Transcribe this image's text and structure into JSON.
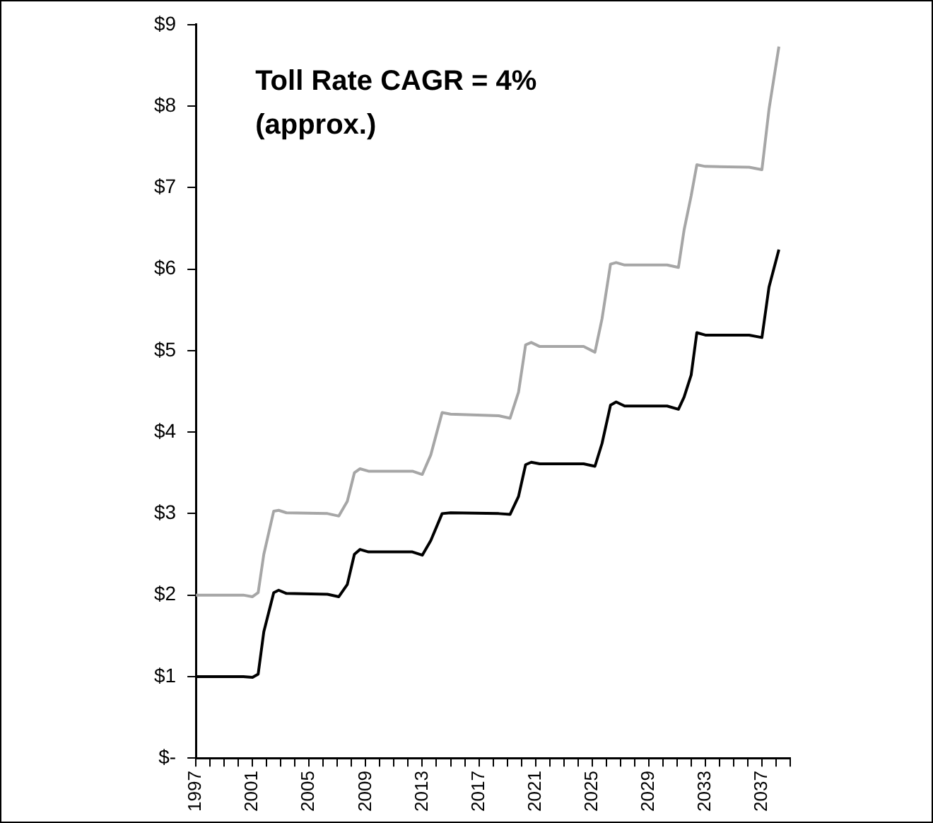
{
  "chart_data": {
    "type": "line",
    "annotations": [
      "Toll Rate CAGR = 4%\n(approx.)"
    ],
    "x": [
      1997,
      2000.35,
      2001,
      2001.4,
      2001.8,
      2002.5,
      2002.85,
      2003.4,
      2006.3,
      2007.1,
      2007.7,
      2008.2,
      2008.6,
      2009.2,
      2012.3,
      2013,
      2013.6,
      2014.4,
      2015,
      2018.4,
      2019.2,
      2019.8,
      2020.3,
      2020.7,
      2021.3,
      2024.4,
      2025.2,
      2025.7,
      2026.3,
      2026.7,
      2027.3,
      2030.3,
      2031.1,
      2031.5,
      2032,
      2032.4,
      2033,
      2036.1,
      2037,
      2037.5,
      2038.2
    ],
    "series": [
      {
        "color": "#a6a6a6",
        "values": [
          2,
          2,
          1.98,
          2.03,
          2.5,
          3.03,
          3.04,
          3.01,
          3.0,
          2.97,
          3.15,
          3.5,
          3.55,
          3.52,
          3.52,
          3.48,
          3.72,
          4.24,
          4.22,
          4.2,
          4.17,
          4.49,
          5.07,
          5.1,
          5.05,
          5.05,
          4.98,
          5.39,
          6.06,
          6.08,
          6.05,
          6.05,
          6.02,
          6.48,
          6.9,
          7.28,
          7.26,
          7.25,
          7.22,
          7.96,
          8.73
        ]
      },
      {
        "color": "#000000",
        "values": [
          1,
          1,
          0.99,
          1.03,
          1.55,
          2.03,
          2.06,
          2.02,
          2.01,
          1.98,
          2.13,
          2.5,
          2.56,
          2.53,
          2.53,
          2.49,
          2.67,
          3.0,
          3.01,
          3.0,
          2.99,
          3.21,
          3.6,
          3.63,
          3.61,
          3.61,
          3.58,
          3.86,
          4.33,
          4.37,
          4.32,
          4.32,
          4.28,
          4.43,
          4.7,
          5.22,
          5.19,
          5.19,
          5.16,
          5.78,
          6.24
        ]
      }
    ],
    "xlim": [
      1997,
      2039
    ],
    "xticks": [
      1997,
      {
        "value": 1998,
        "label": null
      },
      {
        "value": 1999,
        "label": null
      },
      {
        "value": 2000,
        "label": null
      },
      2001,
      {
        "value": 2002,
        "label": null
      },
      {
        "value": 2003,
        "label": null
      },
      {
        "value": 2004,
        "label": null
      },
      2005,
      {
        "value": 2006,
        "label": null
      },
      {
        "value": 2007,
        "label": null
      },
      {
        "value": 2008,
        "label": null
      },
      2009,
      {
        "value": 2010,
        "label": null
      },
      {
        "value": 2011,
        "label": null
      },
      {
        "value": 2012,
        "label": null
      },
      2013,
      {
        "value": 2014,
        "label": null
      },
      {
        "value": 2015,
        "label": null
      },
      {
        "value": 2016,
        "label": null
      },
      2017,
      {
        "value": 2018,
        "label": null
      },
      {
        "value": 2019,
        "label": null
      },
      {
        "value": 2020,
        "label": null
      },
      2021,
      {
        "value": 2022,
        "label": null
      },
      {
        "value": 2023,
        "label": null
      },
      {
        "value": 2024,
        "label": null
      },
      2025,
      {
        "value": 2026,
        "label": null
      },
      {
        "value": 2027,
        "label": null
      },
      {
        "value": 2028,
        "label": null
      },
      2029,
      {
        "value": 2030,
        "label": null
      },
      {
        "value": 2031,
        "label": null
      },
      {
        "value": 2032,
        "label": null
      },
      2033,
      {
        "value": 2034,
        "label": null
      },
      {
        "value": 2035,
        "label": null
      },
      {
        "value": 2036,
        "label": null
      },
      2037,
      {
        "value": 2038,
        "label": null
      },
      {
        "value": 2039,
        "label": null
      }
    ],
    "ylim": [
      0,
      9
    ],
    "yticks": [
      {
        "value": 0,
        "label": "$-"
      },
      {
        "value": 1,
        "label": "$1"
      },
      {
        "value": 2,
        "label": "$2"
      },
      {
        "value": 3,
        "label": "$3"
      },
      {
        "value": 4,
        "label": "$4"
      },
      {
        "value": 5,
        "label": "$5"
      },
      {
        "value": 6,
        "label": "$6"
      },
      {
        "value": 7,
        "label": "$7"
      },
      {
        "value": 8,
        "label": "$8"
      },
      {
        "value": 9,
        "label": "$9"
      }
    ],
    "grid": false,
    "legend": false,
    "marker": "none",
    "line_style": "solid"
  }
}
